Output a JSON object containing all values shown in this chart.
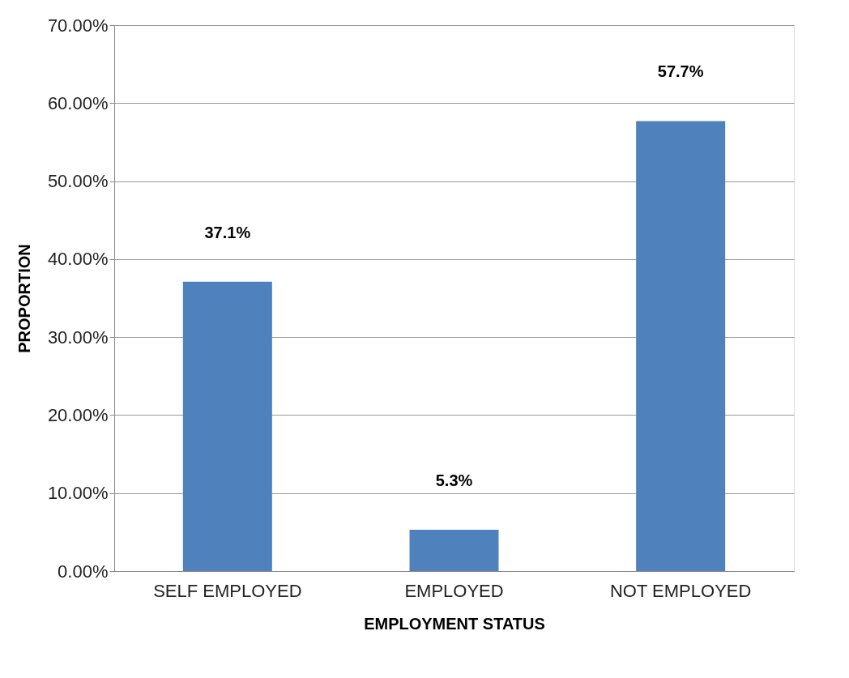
{
  "chart_data": {
    "type": "bar",
    "xlabel": "EMPLOYMENT STATUS",
    "ylabel": "PROPORTION",
    "categories": [
      "SELF EMPLOYED",
      "EMPLOYED",
      "NOT EMPLOYED"
    ],
    "values": [
      37.1,
      5.3,
      57.7
    ],
    "value_labels": [
      "37.1%",
      "5.3%",
      "57.7%"
    ],
    "color": "#4f81bd",
    "ylim": [
      0,
      70
    ],
    "yticks": [
      {
        "value": 0,
        "label": "0.00%"
      },
      {
        "value": 10,
        "label": "10.00%"
      },
      {
        "value": 20,
        "label": "20.00%"
      },
      {
        "value": 30,
        "label": "30.00%"
      },
      {
        "value": 40,
        "label": "40.00%"
      },
      {
        "value": 50,
        "label": "50.00%"
      },
      {
        "value": 60,
        "label": "60.00%"
      },
      {
        "value": 70,
        "label": "70.00%"
      }
    ],
    "grid": "y"
  }
}
